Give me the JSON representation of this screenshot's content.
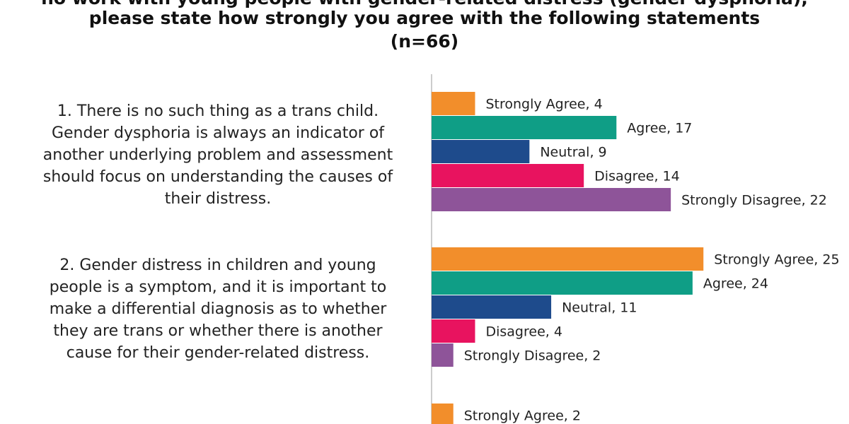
{
  "title": {
    "line1": "ho work with young people with gender-related distress (gender dysphoria),",
    "line2": "please state  how strongly you agree with the following statements",
    "line3": "(n=66)"
  },
  "statements": [
    {
      "lines": [
        "1. There is no such thing as a trans child.",
        "Gender dysphoria is always an indicator of",
        "another underlying problem and assessment",
        "should focus on understanding the causes of",
        "their distress."
      ]
    },
    {
      "lines": [
        "2. Gender distress in children and young",
        "people is a symptom, and it is important to",
        "make a differential diagnosis as to whether",
        "they are trans or whether there is another",
        "cause for their gender-related distress."
      ]
    }
  ],
  "colors": {
    "Strongly Agree": "#F28E2B",
    "Agree": "#0F9E86",
    "Neutral": "#1E4B8C",
    "Disagree": "#E8135F",
    "Strongly Disagree": "#8E5499",
    "axis": "#BBBBBB"
  },
  "chart_data": {
    "type": "bar",
    "orientation": "horizontal",
    "categories": [
      "Strongly Agree",
      "Agree",
      "Neutral",
      "Disagree",
      "Strongly Disagree"
    ],
    "groups": [
      {
        "values": [
          4,
          17,
          9,
          14,
          22
        ]
      },
      {
        "values": [
          25,
          24,
          11,
          4,
          2
        ]
      },
      {
        "values": [
          2
        ]
      }
    ],
    "xlim": [
      0,
      25
    ],
    "grid": false,
    "legend": "none",
    "data_labels": "category, value"
  }
}
